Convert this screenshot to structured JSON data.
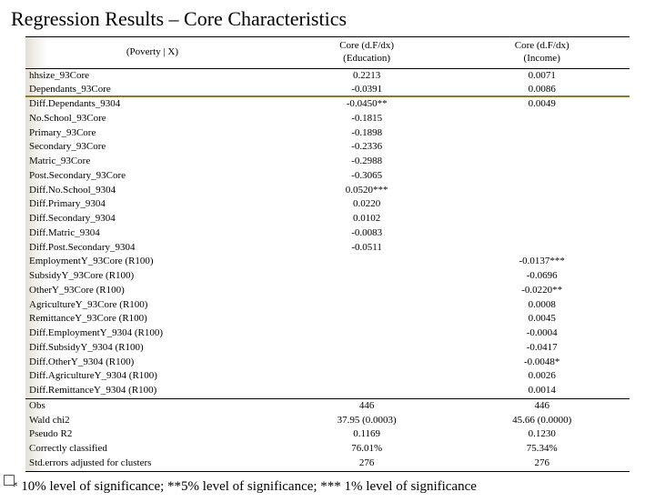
{
  "title": "Regression Results – Core Characteristics",
  "footnote": "* 10% level of significance; **5% level of significance; *** 1% level of significance",
  "columns": {
    "var_header": "(Poverty | X)",
    "col1_line1": "Core (d.F/dx)",
    "col1_line2": "(Education)",
    "col2_line1": "Core (d.F/dx)",
    "col2_line2": "(Income)"
  },
  "rows": [
    {
      "v": "hhsize_93Core",
      "c1": "0.2213",
      "c2": "0.0071"
    },
    {
      "v": "Dependants_93Core",
      "c1": "-0.0391",
      "c2": "0.0086"
    },
    {
      "v": "Diff.Dependants_9304",
      "c1": "-0.0450**",
      "c2": "0.0049"
    },
    {
      "v": "No.School_93Core",
      "c1": "-0.1815",
      "c2": ""
    },
    {
      "v": "Primary_93Core",
      "c1": "-0.1898",
      "c2": ""
    },
    {
      "v": "Secondary_93Core",
      "c1": "-0.2336",
      "c2": ""
    },
    {
      "v": "Matric_93Core",
      "c1": "-0.2988",
      "c2": ""
    },
    {
      "v": "Post.Secondary_93Core",
      "c1": "-0.3065",
      "c2": ""
    },
    {
      "v": "Diff.No.School_9304",
      "c1": "0.0520***",
      "c2": ""
    },
    {
      "v": "Diff.Primary_9304",
      "c1": "0.0220",
      "c2": ""
    },
    {
      "v": "Diff.Secondary_9304",
      "c1": "0.0102",
      "c2": ""
    },
    {
      "v": "Diff.Matric_9304",
      "c1": "-0.0083",
      "c2": ""
    },
    {
      "v": "Diff.Post.Secondary_9304",
      "c1": "-0.0511",
      "c2": ""
    },
    {
      "v": "EmploymentY_93Core (R100)",
      "c1": "",
      "c2": "-0.0137***"
    },
    {
      "v": "SubsidyY_93Core (R100)",
      "c1": "",
      "c2": "-0.0696"
    },
    {
      "v": "OtherY_93Core (R100)",
      "c1": "",
      "c2": "-0.0220**"
    },
    {
      "v": "AgricultureY_93Core (R100)",
      "c1": "",
      "c2": "0.0008"
    },
    {
      "v": "RemittanceY_93Core (R100)",
      "c1": "",
      "c2": "0.0045"
    },
    {
      "v": "Diff.EmploymentY_9304 (R100)",
      "c1": "",
      "c2": "-0.0004"
    },
    {
      "v": "Diff.SubsidyY_9304 (R100)",
      "c1": "",
      "c2": "-0.0417"
    },
    {
      "v": "Diff.OtherY_9304 (R100)",
      "c1": "",
      "c2": "-0.0048*"
    },
    {
      "v": "Diff.AgricultureY_9304 (R100)",
      "c1": "",
      "c2": "0.0026"
    },
    {
      "v": "Diff.RemittanceY_9304 (R100)",
      "c1": "",
      "c2": "0.0014"
    }
  ],
  "stats": [
    {
      "v": "Obs",
      "c1": "446",
      "c2": "446"
    },
    {
      "v": "Wald chi2",
      "c1": "37.95 (0.0003)",
      "c2": "45.66 (0.0000)"
    },
    {
      "v": "Pseudo R2",
      "c1": "0.1169",
      "c2": "0.1230"
    },
    {
      "v": "Correctly classified",
      "c1": "76.01%",
      "c2": "75.34%"
    },
    {
      "v": "Std.errors adjusted for clusters",
      "c1": "276",
      "c2": "276"
    }
  ],
  "col_widths": {
    "var": "42%",
    "c1": "29%",
    "c2": "29%"
  },
  "colors": {
    "accent": "#8a7a2e",
    "border": "#000000",
    "bg": "#ffffff"
  }
}
